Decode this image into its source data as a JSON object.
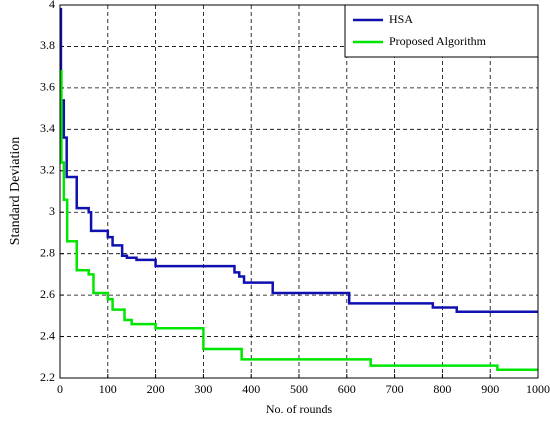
{
  "chart_data": {
    "type": "line",
    "xlabel": "No. of rounds",
    "ylabel": "Standard Deviation",
    "xlim": [
      0,
      1000
    ],
    "ylim": [
      2.2,
      4
    ],
    "xticks": [
      0,
      100,
      200,
      300,
      400,
      500,
      600,
      700,
      800,
      900,
      1000
    ],
    "yticks": [
      2.2,
      2.4,
      2.6,
      2.8,
      3,
      3.2,
      3.4,
      3.6,
      3.8,
      4
    ],
    "grid": true,
    "legend": "top-right",
    "series": [
      {
        "name": "HSA",
        "color": "#1010b0",
        "x": [
          0,
          2,
          2,
          8,
          8,
          14,
          14,
          35,
          35,
          60,
          60,
          65,
          65,
          100,
          100,
          110,
          110,
          130,
          130,
          140,
          140,
          160,
          160,
          200,
          200,
          365,
          365,
          375,
          375,
          385,
          385,
          445,
          445,
          605,
          605,
          780,
          780,
          830,
          830,
          1000
        ],
        "values": [
          3.98,
          3.98,
          3.54,
          3.54,
          3.36,
          3.36,
          3.17,
          3.17,
          3.02,
          3.02,
          3.0,
          3.0,
          2.91,
          2.91,
          2.88,
          2.88,
          2.84,
          2.84,
          2.79,
          2.79,
          2.78,
          2.78,
          2.77,
          2.77,
          2.74,
          2.74,
          2.71,
          2.71,
          2.69,
          2.69,
          2.66,
          2.66,
          2.61,
          2.61,
          2.56,
          2.56,
          2.54,
          2.54,
          2.52,
          2.52
        ]
      },
      {
        "name": "Proposed Algorithm",
        "color": "#00e600",
        "x": [
          0,
          3,
          3,
          8,
          8,
          15,
          15,
          35,
          35,
          60,
          60,
          70,
          70,
          100,
          100,
          110,
          110,
          135,
          135,
          150,
          150,
          200,
          200,
          300,
          300,
          380,
          380,
          650,
          650,
          915,
          915,
          1000
        ],
        "values": [
          3.68,
          3.68,
          3.24,
          3.24,
          3.06,
          3.06,
          2.86,
          2.86,
          2.72,
          2.72,
          2.7,
          2.7,
          2.61,
          2.61,
          2.58,
          2.58,
          2.53,
          2.53,
          2.48,
          2.48,
          2.46,
          2.46,
          2.44,
          2.44,
          2.34,
          2.34,
          2.29,
          2.29,
          2.26,
          2.26,
          2.24,
          2.24
        ]
      }
    ]
  }
}
